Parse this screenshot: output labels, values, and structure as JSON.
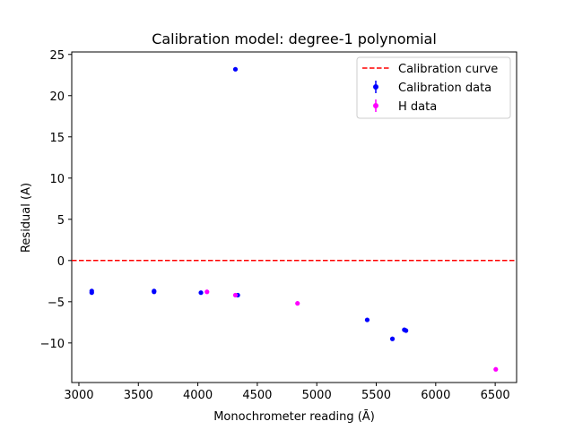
{
  "chart_data": {
    "type": "scatter",
    "title": "Calibration model: degree-1 polynomial",
    "xlabel": "Monochrometer reading (Ā)",
    "ylabel": "Residual (A)",
    "xlim": [
      2940,
      6680
    ],
    "ylim": [
      -14.8,
      25.3
    ],
    "xticks": [
      3000,
      3500,
      4000,
      4500,
      5000,
      5500,
      6000,
      6500
    ],
    "yticks": [
      -10,
      -5,
      0,
      5,
      10,
      15,
      20,
      25
    ],
    "grid": false,
    "legend_position": "top-right",
    "series": [
      {
        "name": "Calibration curve",
        "kind": "hline",
        "y": 0,
        "color": "#ff0000",
        "style": "dashed"
      },
      {
        "name": "Calibration data",
        "kind": "points",
        "color": "#0000ff",
        "x": [
          3108,
          3108,
          3632,
          3632,
          4026,
          4316,
          4336,
          5424,
          5636,
          5736,
          5750
        ],
        "y": [
          -3.7,
          -3.9,
          -3.7,
          -3.8,
          -3.9,
          23.2,
          -4.2,
          -7.2,
          -9.5,
          -8.4,
          -8.5
        ]
      },
      {
        "name": "H data",
        "kind": "points",
        "color": "#ff00ff",
        "x": [
          4077,
          4316,
          4838,
          6505
        ],
        "y": [
          -3.8,
          -4.2,
          -5.2,
          -13.2
        ]
      }
    ]
  }
}
